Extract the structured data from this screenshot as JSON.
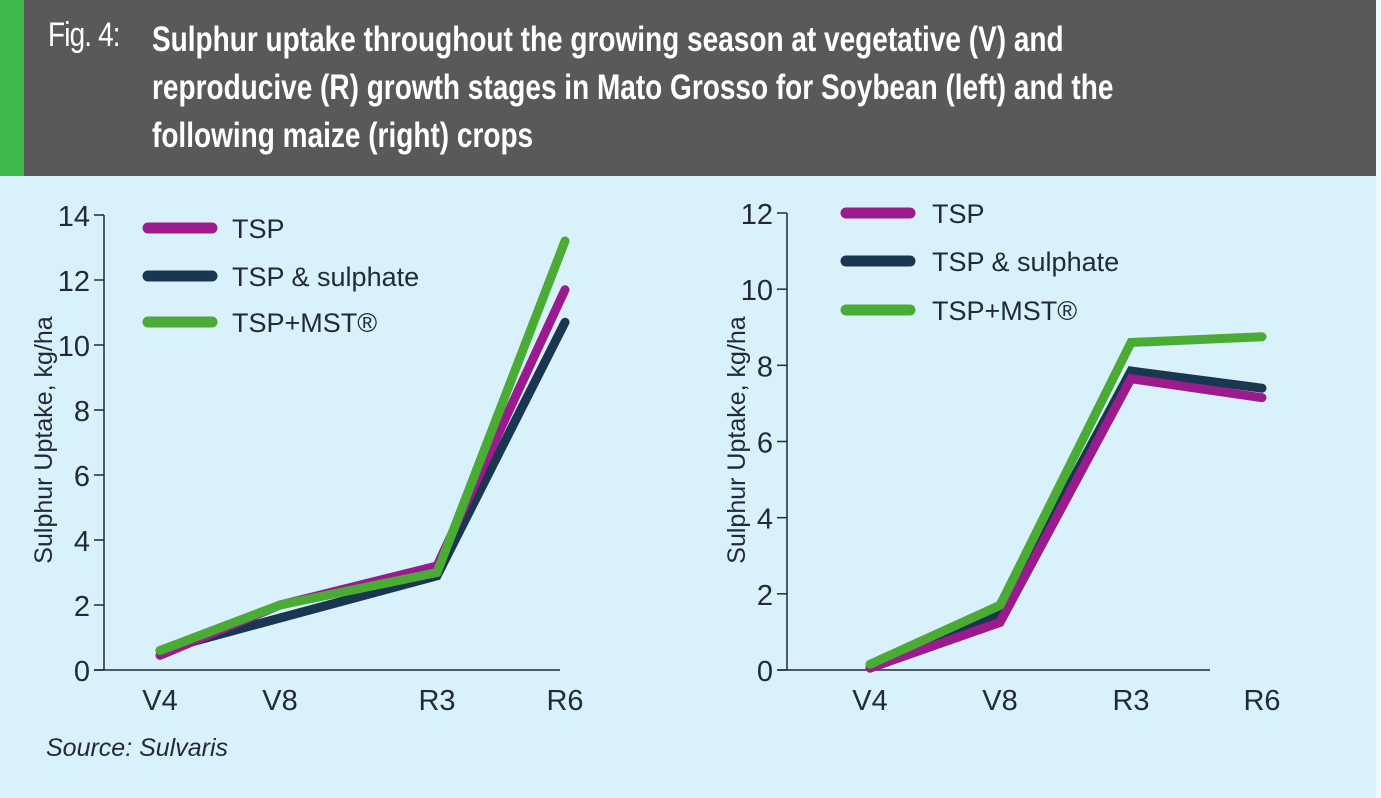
{
  "header": {
    "fig_label": "Fig. 4:",
    "title_lines": [
      "Sulphur uptake throughout the growing season at vegetative (V) and",
      "reproducive (R) growth stages in Mato Grosso for Soybean (left) and the",
      "following maize (right) crops"
    ]
  },
  "source": "Source: Sulvaris",
  "colors": {
    "header_bg": "#59595b",
    "accent": "#3dba4b",
    "background": "#d9f1fb",
    "TSP": "#9b1b8f",
    "TSP & sulphate": "#1b3650",
    "TSP+MST®": "#4aab35"
  },
  "chart_data": [
    {
      "type": "line",
      "title": "Soybean",
      "xlabel": "",
      "ylabel": "Sulphur Uptake, kg/ha",
      "categories": [
        "V4",
        "V8",
        "R3",
        "R6"
      ],
      "ylim": [
        0,
        14
      ],
      "yticks": [
        0,
        2,
        4,
        6,
        8,
        10,
        12,
        14
      ],
      "grid": false,
      "legend_position": "top-left",
      "series": [
        {
          "name": "TSP",
          "values": [
            0.45,
            2.0,
            3.2,
            11.7
          ]
        },
        {
          "name": "TSP & sulphate",
          "values": [
            0.6,
            1.6,
            2.9,
            10.7
          ]
        },
        {
          "name": "TSP+MST®",
          "values": [
            0.6,
            2.0,
            3.0,
            13.2
          ]
        }
      ]
    },
    {
      "type": "line",
      "title": "Maize",
      "xlabel": "",
      "ylabel": "Sulphur Uptake, kg/ha",
      "categories": [
        "V4",
        "V8",
        "R3",
        "R6"
      ],
      "ylim": [
        0,
        12
      ],
      "yticks": [
        0,
        2,
        4,
        6,
        8,
        10,
        12
      ],
      "grid": false,
      "legend_position": "top-left",
      "series": [
        {
          "name": "TSP",
          "values": [
            0.05,
            1.25,
            7.65,
            7.15
          ]
        },
        {
          "name": "TSP & sulphate",
          "values": [
            0.05,
            1.45,
            7.85,
            7.4
          ]
        },
        {
          "name": "TSP+MST®",
          "values": [
            0.15,
            1.7,
            8.6,
            8.75
          ]
        }
      ]
    }
  ]
}
